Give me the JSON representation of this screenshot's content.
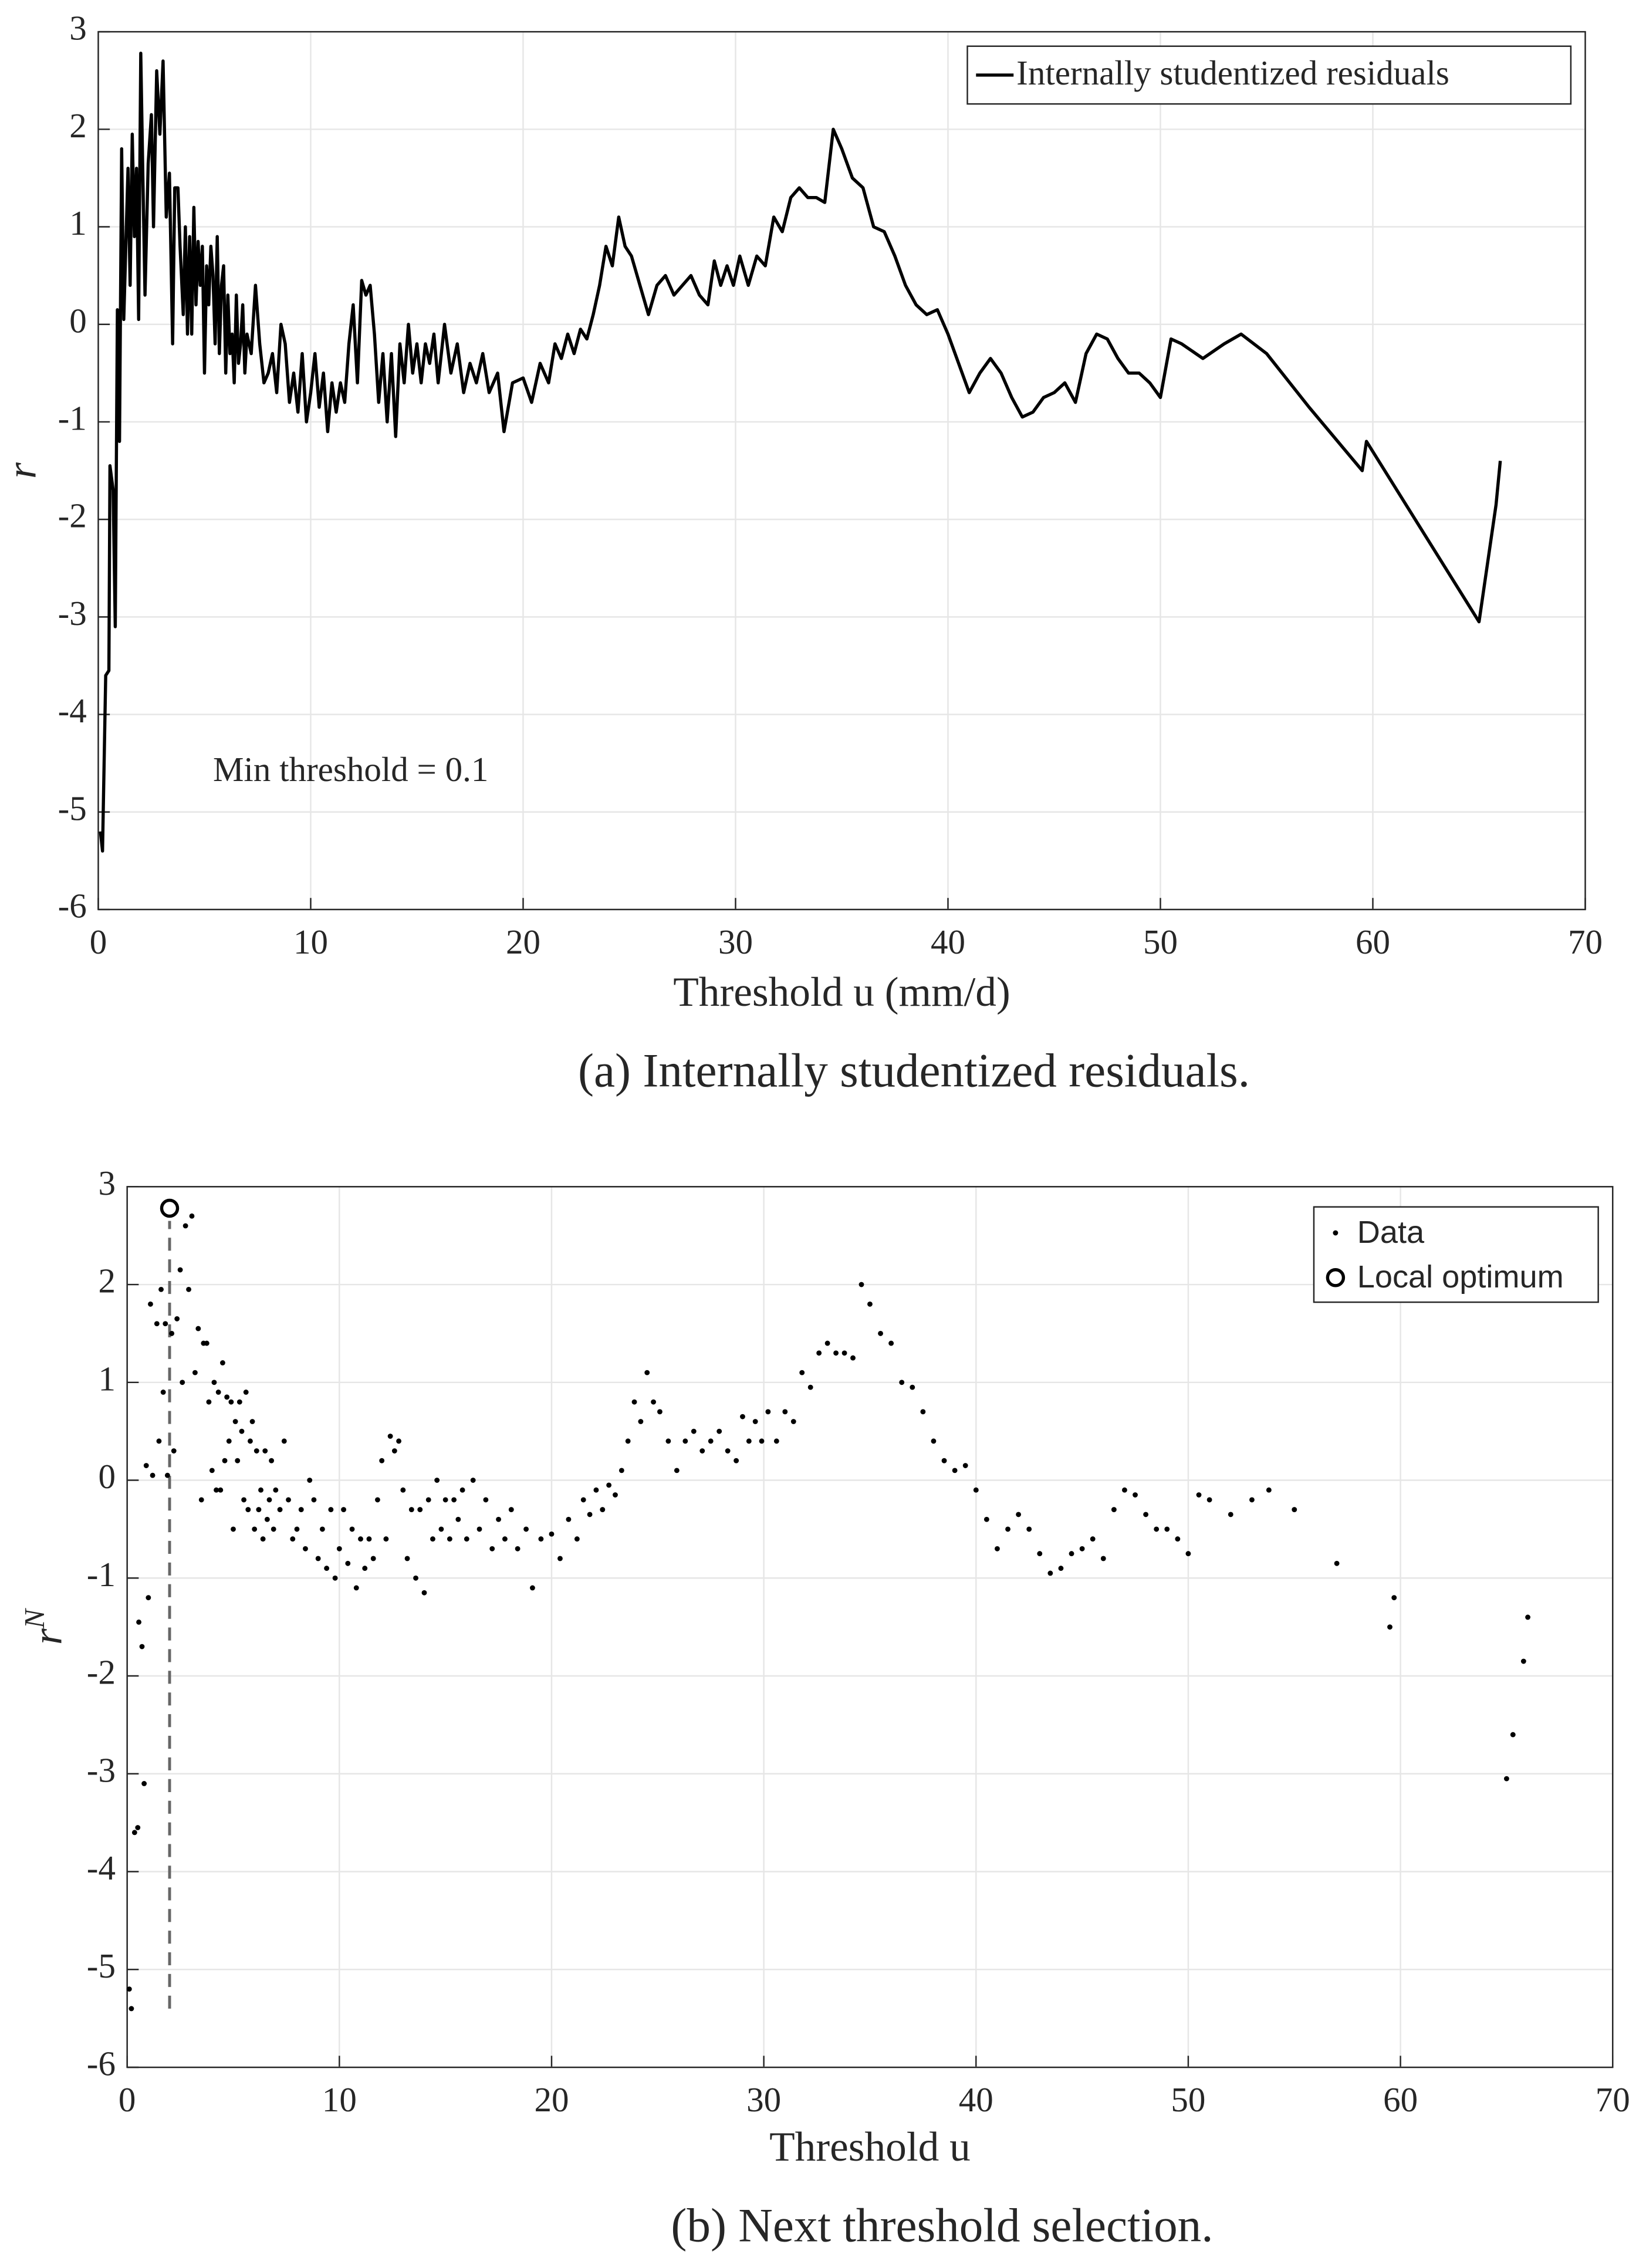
{
  "chart_data": [
    {
      "type": "line",
      "caption": "(a) Internally studentized residuals.",
      "xlabel": "Threshold u (mm/d)",
      "ylabel": "r",
      "annotation": "Min threshold = 0.1",
      "xlim": [
        0,
        70
      ],
      "ylim": [
        -6,
        3
      ],
      "xticks": [
        0,
        10,
        20,
        30,
        40,
        50,
        60,
        70
      ],
      "yticks": [
        -6,
        -5,
        -4,
        -3,
        -2,
        -1,
        0,
        1,
        2,
        3
      ],
      "grid": true,
      "legend": "upper right",
      "series": [
        {
          "name": "Internally studentized residuals",
          "color": "#000000",
          "x": [
            0.1,
            0.2,
            0.35,
            0.5,
            0.55,
            0.7,
            0.8,
            0.9,
            1.0,
            1.1,
            1.2,
            1.4,
            1.5,
            1.6,
            1.7,
            1.8,
            1.9,
            2.0,
            2.1,
            2.2,
            2.35,
            2.5,
            2.6,
            2.75,
            2.9,
            3.05,
            3.2,
            3.35,
            3.5,
            3.6,
            3.75,
            3.85,
            4.0,
            4.1,
            4.2,
            4.3,
            4.4,
            4.5,
            4.6,
            4.7,
            4.8,
            4.9,
            5.0,
            5.1,
            5.2,
            5.3,
            5.4,
            5.5,
            5.6,
            5.7,
            5.8,
            5.9,
            6.0,
            6.1,
            6.2,
            6.3,
            6.4,
            6.5,
            6.6,
            6.7,
            6.8,
            6.9,
            7.0,
            7.2,
            7.4,
            7.6,
            7.8,
            8.0,
            8.2,
            8.4,
            8.6,
            8.8,
            9.0,
            9.2,
            9.4,
            9.6,
            9.8,
            10.0,
            10.2,
            10.4,
            10.6,
            10.8,
            11.0,
            11.2,
            11.4,
            11.6,
            11.8,
            12.0,
            12.2,
            12.4,
            12.6,
            12.8,
            13.0,
            13.2,
            13.4,
            13.6,
            13.8,
            14.0,
            14.2,
            14.4,
            14.6,
            14.8,
            15.0,
            15.2,
            15.4,
            15.6,
            15.8,
            16.0,
            16.3,
            16.6,
            16.9,
            17.2,
            17.5,
            17.8,
            18.1,
            18.4,
            18.8,
            19.1,
            19.5,
            20.0,
            20.4,
            20.8,
            21.2,
            21.5,
            21.8,
            22.1,
            22.4,
            22.7,
            23.0,
            23.3,
            23.6,
            23.9,
            24.2,
            24.5,
            24.8,
            25.1,
            25.5,
            25.9,
            26.3,
            26.7,
            27.1,
            27.5,
            27.9,
            28.3,
            28.7,
            29.0,
            29.3,
            29.6,
            29.9,
            30.2,
            30.6,
            31.0,
            31.4,
            31.8,
            32.2,
            32.6,
            33.0,
            33.4,
            33.8,
            34.2,
            34.6,
            35.0,
            35.5,
            36.0,
            36.5,
            37.0,
            37.5,
            38.0,
            38.5,
            39.0,
            39.5,
            40.0,
            40.5,
            41.0,
            41.5,
            42.0,
            42.5,
            43.0,
            43.5,
            44.0,
            44.5,
            45.0,
            45.5,
            46.0,
            46.5,
            47.0,
            47.5,
            48.0,
            48.5,
            49.0,
            49.5,
            50.0,
            50.5,
            51.0,
            52.0,
            53.0,
            53.8,
            55.0,
            57.0,
            59.5,
            59.7,
            65.0,
            65.3,
            65.8,
            66.0
          ],
          "values": [
            -5.2,
            -5.4,
            -3.6,
            -3.55,
            -1.45,
            -1.7,
            -3.1,
            0.15,
            -1.2,
            1.8,
            0.05,
            1.6,
            0.4,
            1.95,
            0.9,
            1.6,
            0.05,
            2.78,
            1.5,
            0.3,
            1.65,
            2.15,
            1.0,
            2.6,
            1.95,
            2.7,
            1.1,
            1.55,
            -0.2,
            1.4,
            1.4,
            0.8,
            0.1,
            1.0,
            -0.1,
            0.9,
            -0.1,
            1.2,
            0.2,
            0.85,
            0.4,
            0.8,
            -0.5,
            0.6,
            0.2,
            0.8,
            0.5,
            -0.2,
            0.9,
            -0.3,
            0.4,
            0.6,
            -0.5,
            0.3,
            -0.3,
            -0.1,
            -0.6,
            0.3,
            -0.4,
            -0.2,
            0.2,
            -0.5,
            -0.1,
            -0.3,
            0.4,
            -0.2,
            -0.6,
            -0.5,
            -0.3,
            -0.7,
            0.0,
            -0.2,
            -0.8,
            -0.5,
            -0.9,
            -0.3,
            -1.0,
            -0.7,
            -0.3,
            -0.85,
            -0.5,
            -1.1,
            -0.6,
            -0.9,
            -0.6,
            -0.8,
            -0.2,
            0.2,
            -0.6,
            0.45,
            0.3,
            0.4,
            -0.1,
            -0.8,
            -0.3,
            -1.0,
            -0.3,
            -1.15,
            -0.2,
            -0.6,
            0.0,
            -0.5,
            -0.2,
            -0.6,
            -0.2,
            -0.4,
            -0.1,
            -0.6,
            0.0,
            -0.5,
            -0.2,
            -0.7,
            -0.4,
            -0.6,
            -0.3,
            -0.7,
            -0.5,
            -1.1,
            -0.6,
            -0.55,
            -0.8,
            -0.4,
            -0.6,
            -0.2,
            -0.35,
            -0.1,
            -0.3,
            -0.05,
            -0.15,
            0.1,
            0.4,
            0.8,
            0.6,
            1.1,
            0.8,
            0.7,
            0.4,
            0.1,
            0.4,
            0.5,
            0.3,
            0.4,
            0.5,
            0.3,
            0.2,
            0.65,
            0.4,
            0.6,
            0.4,
            0.7,
            0.4,
            0.7,
            0.6,
            1.1,
            0.95,
            1.3,
            1.4,
            1.3,
            1.3,
            1.25,
            2.0,
            1.8,
            1.5,
            1.4,
            1.0,
            0.95,
            0.7,
            0.4,
            0.2,
            0.1,
            0.15,
            -0.1,
            -0.4,
            -0.7,
            -0.5,
            -0.35,
            -0.5,
            -0.75,
            -0.95,
            -0.9,
            -0.75,
            -0.7,
            -0.6,
            -0.8,
            -0.3,
            -0.1,
            -0.15,
            -0.35,
            -0.5,
            -0.5,
            -0.6,
            -0.75,
            -0.15,
            -0.2,
            -0.35,
            -0.2,
            -0.1,
            -0.3,
            -0.85,
            -1.5,
            -1.2,
            -3.05,
            -2.6,
            -1.85,
            -1.4
          ]
        }
      ]
    },
    {
      "type": "scatter",
      "caption": "(b) Next threshold selection.",
      "xlabel": "Threshold u",
      "ylabel": "r",
      "ylabel_sup": "N",
      "xlim": [
        0,
        70
      ],
      "ylim": [
        -6,
        3
      ],
      "xticks": [
        0,
        10,
        20,
        30,
        40,
        50,
        60,
        70
      ],
      "yticks": [
        -6,
        -5,
        -4,
        -3,
        -2,
        -1,
        0,
        1,
        2,
        3
      ],
      "grid": true,
      "legend": "upper right",
      "series": [
        {
          "name": "Data",
          "color": "#000000",
          "x": [
            0.1,
            0.2,
            0.35,
            0.5,
            0.55,
            0.7,
            0.8,
            0.9,
            1.0,
            1.1,
            1.2,
            1.4,
            1.5,
            1.6,
            1.7,
            1.8,
            1.9,
            2.1,
            2.2,
            2.35,
            2.5,
            2.6,
            2.75,
            2.9,
            3.05,
            3.2,
            3.35,
            3.5,
            3.6,
            3.75,
            3.85,
            4.0,
            4.1,
            4.2,
            4.3,
            4.4,
            4.5,
            4.6,
            4.7,
            4.8,
            4.9,
            5.0,
            5.1,
            5.2,
            5.3,
            5.4,
            5.5,
            5.6,
            5.7,
            5.8,
            5.9,
            6.0,
            6.1,
            6.2,
            6.3,
            6.4,
            6.5,
            6.6,
            6.7,
            6.8,
            6.9,
            7.0,
            7.2,
            7.4,
            7.6,
            7.8,
            8.0,
            8.2,
            8.4,
            8.6,
            8.8,
            9.0,
            9.2,
            9.4,
            9.6,
            9.8,
            10.0,
            10.2,
            10.4,
            10.6,
            10.8,
            11.0,
            11.2,
            11.4,
            11.6,
            11.8,
            12.0,
            12.2,
            12.4,
            12.6,
            12.8,
            13.0,
            13.2,
            13.4,
            13.6,
            13.8,
            14.0,
            14.2,
            14.4,
            14.6,
            14.8,
            15.0,
            15.2,
            15.4,
            15.6,
            15.8,
            16.0,
            16.3,
            16.6,
            16.9,
            17.2,
            17.5,
            17.8,
            18.1,
            18.4,
            18.8,
            19.1,
            19.5,
            20.0,
            20.4,
            20.8,
            21.2,
            21.5,
            21.8,
            22.1,
            22.4,
            22.7,
            23.0,
            23.3,
            23.6,
            23.9,
            24.2,
            24.5,
            24.8,
            25.1,
            25.5,
            25.9,
            26.3,
            26.7,
            27.1,
            27.5,
            27.9,
            28.3,
            28.7,
            29.0,
            29.3,
            29.6,
            29.9,
            30.2,
            30.6,
            31.0,
            31.4,
            31.8,
            32.2,
            32.6,
            33.0,
            33.4,
            33.8,
            34.2,
            34.6,
            35.0,
            35.5,
            36.0,
            36.5,
            37.0,
            37.5,
            38.0,
            38.5,
            39.0,
            39.5,
            40.0,
            40.5,
            41.0,
            41.5,
            42.0,
            42.5,
            43.0,
            43.5,
            44.0,
            44.5,
            45.0,
            45.5,
            46.0,
            46.5,
            47.0,
            47.5,
            48.0,
            48.5,
            49.0,
            49.5,
            50.0,
            50.5,
            51.0,
            52.0,
            53.0,
            53.8,
            55.0,
            57.0,
            59.5,
            59.7,
            65.0,
            65.3,
            65.8,
            66.0
          ],
          "values": [
            -5.2,
            -5.4,
            -3.6,
            -3.55,
            -1.45,
            -1.7,
            -3.1,
            0.15,
            -1.2,
            1.8,
            0.05,
            1.6,
            0.4,
            1.95,
            0.9,
            1.6,
            0.05,
            1.5,
            0.3,
            1.65,
            2.15,
            1.0,
            2.6,
            1.95,
            2.7,
            1.1,
            1.55,
            -0.2,
            1.4,
            1.4,
            0.8,
            0.1,
            1.0,
            -0.1,
            0.9,
            -0.1,
            1.2,
            0.2,
            0.85,
            0.4,
            0.8,
            -0.5,
            0.6,
            0.2,
            0.8,
            0.5,
            -0.2,
            0.9,
            -0.3,
            0.4,
            0.6,
            -0.5,
            0.3,
            -0.3,
            -0.1,
            -0.6,
            0.3,
            -0.4,
            -0.2,
            0.2,
            -0.5,
            -0.1,
            -0.3,
            0.4,
            -0.2,
            -0.6,
            -0.5,
            -0.3,
            -0.7,
            0.0,
            -0.2,
            -0.8,
            -0.5,
            -0.9,
            -0.3,
            -1.0,
            -0.7,
            -0.3,
            -0.85,
            -0.5,
            -1.1,
            -0.6,
            -0.9,
            -0.6,
            -0.8,
            -0.2,
            0.2,
            -0.6,
            0.45,
            0.3,
            0.4,
            -0.1,
            -0.8,
            -0.3,
            -1.0,
            -0.3,
            -1.15,
            -0.2,
            -0.6,
            0.0,
            -0.5,
            -0.2,
            -0.6,
            -0.2,
            -0.4,
            -0.1,
            -0.6,
            0.0,
            -0.5,
            -0.2,
            -0.7,
            -0.4,
            -0.6,
            -0.3,
            -0.7,
            -0.5,
            -1.1,
            -0.6,
            -0.55,
            -0.8,
            -0.4,
            -0.6,
            -0.2,
            -0.35,
            -0.1,
            -0.3,
            -0.05,
            -0.15,
            0.1,
            0.4,
            0.8,
            0.6,
            1.1,
            0.8,
            0.7,
            0.4,
            0.1,
            0.4,
            0.5,
            0.3,
            0.4,
            0.5,
            0.3,
            0.2,
            0.65,
            0.4,
            0.6,
            0.4,
            0.7,
            0.4,
            0.7,
            0.6,
            1.1,
            0.95,
            1.3,
            1.4,
            1.3,
            1.3,
            1.25,
            2.0,
            1.8,
            1.5,
            1.4,
            1.0,
            0.95,
            0.7,
            0.4,
            0.2,
            0.1,
            0.15,
            -0.1,
            -0.4,
            -0.7,
            -0.5,
            -0.35,
            -0.5,
            -0.75,
            -0.95,
            -0.9,
            -0.75,
            -0.7,
            -0.6,
            -0.8,
            -0.3,
            -0.1,
            -0.15,
            -0.35,
            -0.5,
            -0.5,
            -0.6,
            -0.75,
            -0.15,
            -0.2,
            -0.35,
            -0.2,
            -0.1,
            -0.3,
            -0.85,
            -1.5,
            -1.2,
            -3.05,
            -2.6,
            -1.85,
            -1.4
          ]
        }
      ],
      "optimum": {
        "name": "Local optimum",
        "x": 2.0,
        "y": 2.78
      },
      "threshold_line": {
        "x": 2.0,
        "y": [
          -5.4,
          2.65
        ]
      }
    }
  ]
}
